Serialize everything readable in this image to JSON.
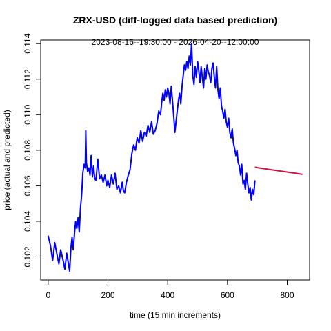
{
  "chart_data": {
    "type": "line",
    "title": "ZRX-USD (diff-logged data based prediction)",
    "subtitle": "2023-08-16--19:30:00  -  2026-04-20--12:00:00",
    "xlabel": "time (15 min increments)",
    "ylabel": "price (actual and predicted)",
    "xlim": [
      -25,
      875
    ],
    "ylim": [
      0.1007,
      0.1142
    ],
    "xticks": [
      0,
      200,
      400,
      600,
      800
    ],
    "yticks": [
      0.102,
      0.104,
      0.106,
      0.108,
      0.11,
      0.112,
      0.114
    ],
    "ytick_labels": [
      "0.102",
      "0.104",
      "0.106",
      "0.108",
      "0.110",
      "0.112",
      "0.114"
    ],
    "series": [
      {
        "color": "#0000ff",
        "x": [
          0,
          8,
          15,
          22,
          30,
          36,
          42,
          50,
          56,
          62,
          68,
          72,
          76,
          80,
          84,
          88,
          92,
          96,
          100,
          104,
          108,
          112,
          116,
          120,
          124,
          126,
          128,
          132,
          136,
          140,
          144,
          148,
          152,
          156,
          160,
          166,
          172,
          178,
          184,
          190,
          196,
          200,
          206,
          212,
          218,
          224,
          230,
          236,
          242,
          248,
          252,
          256,
          262,
          268,
          274,
          280,
          286,
          292,
          298,
          304,
          310,
          316,
          322,
          328,
          334,
          340,
          346,
          352,
          358,
          364,
          370,
          376,
          380,
          384,
          388,
          392,
          396,
          400,
          404,
          408,
          412,
          416,
          420,
          424,
          428,
          432,
          436,
          440,
          444,
          448,
          452,
          456,
          460,
          464,
          468,
          472,
          476,
          480,
          484,
          488,
          492,
          496,
          500,
          504,
          508,
          512,
          516,
          520,
          524,
          528,
          532,
          536,
          540,
          544,
          548,
          552,
          556,
          560,
          564,
          568,
          572,
          576,
          580,
          584,
          588,
          592,
          596,
          600,
          604,
          608,
          612,
          616,
          620,
          624,
          628,
          632,
          636,
          640,
          644,
          648,
          652,
          656,
          660,
          664,
          668,
          672,
          676,
          680,
          684,
          688,
          692
        ],
        "values": [
          0.1032,
          0.1026,
          0.1018,
          0.1028,
          0.1021,
          0.1016,
          0.1024,
          0.1018,
          0.1013,
          0.1022,
          0.1016,
          0.1012,
          0.1025,
          0.1031,
          0.1024,
          0.1033,
          0.104,
          0.1036,
          0.1042,
          0.1034,
          0.1047,
          0.1055,
          0.1067,
          0.1072,
          0.107,
          0.1091,
          0.1073,
          0.1068,
          0.107,
          0.1066,
          0.1077,
          0.1065,
          0.1071,
          0.1064,
          0.1063,
          0.1075,
          0.1064,
          0.1066,
          0.1062,
          0.1066,
          0.106,
          0.1063,
          0.1059,
          0.1066,
          0.1061,
          0.1067,
          0.1058,
          0.106,
          0.1056,
          0.1062,
          0.1057,
          0.1056,
          0.1062,
          0.1066,
          0.1069,
          0.1078,
          0.1083,
          0.108,
          0.1087,
          0.1084,
          0.1091,
          0.1085,
          0.109,
          0.1088,
          0.1094,
          0.109,
          0.1096,
          0.1089,
          0.1091,
          0.1095,
          0.1102,
          0.11,
          0.1107,
          0.1112,
          0.1108,
          0.1114,
          0.111,
          0.1115,
          0.1112,
          0.1106,
          0.1116,
          0.1108,
          0.11,
          0.109,
          0.1096,
          0.1102,
          0.1108,
          0.1112,
          0.1106,
          0.1116,
          0.1122,
          0.1128,
          0.1125,
          0.113,
          0.1126,
          0.1133,
          0.1128,
          0.114,
          0.1122,
          0.1117,
          0.1127,
          0.1121,
          0.113,
          0.1125,
          0.1118,
          0.1127,
          0.1121,
          0.1115,
          0.1126,
          0.112,
          0.1128,
          0.1124,
          0.1122,
          0.1118,
          0.1126,
          0.1129,
          0.1121,
          0.1115,
          0.1127,
          0.1114,
          0.1109,
          0.1115,
          0.1105,
          0.1102,
          0.1098,
          0.1103,
          0.1096,
          0.1093,
          0.1098,
          0.109,
          0.1087,
          0.1092,
          0.1084,
          0.1081,
          0.1077,
          0.108,
          0.1073,
          0.1071,
          0.1066,
          0.1072,
          0.1061,
          0.1063,
          0.1058,
          0.1067,
          0.1061,
          0.1056,
          0.1059,
          0.1052,
          0.1058,
          0.1055,
          0.1063
        ]
      },
      {
        "color": "#cc1144",
        "x": [
          692,
          700,
          720,
          740,
          760,
          780,
          800,
          820,
          840,
          851
        ],
        "values": [
          0.10705,
          0.10702,
          0.10697,
          0.10692,
          0.10687,
          0.10682,
          0.10677,
          0.10672,
          0.10667,
          0.10664
        ]
      }
    ]
  }
}
